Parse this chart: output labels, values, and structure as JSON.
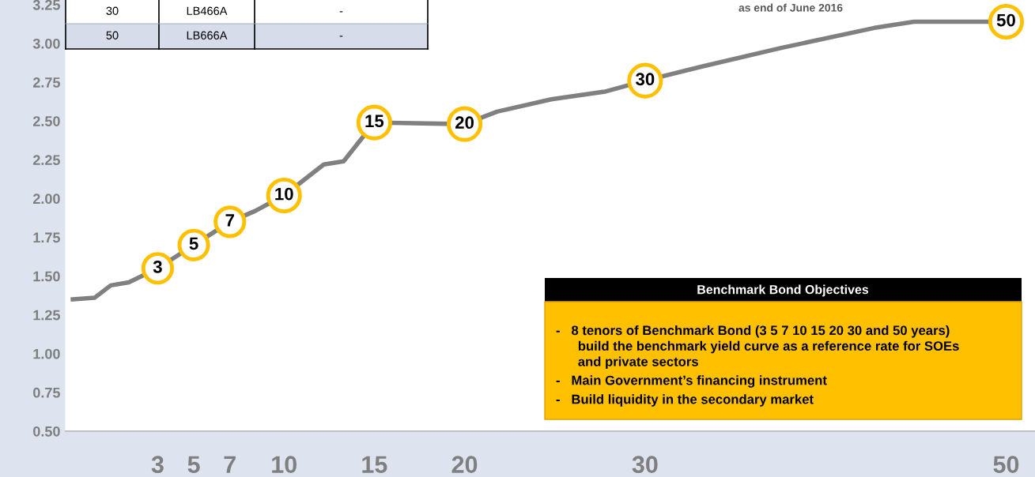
{
  "chart_data": {
    "type": "line",
    "x": [
      -1.7,
      -0.5,
      0.4,
      1.4,
      3,
      5,
      7,
      8.4,
      10,
      12.2,
      13.3,
      15,
      20,
      21.8,
      24.8,
      27.8,
      30,
      33.1,
      37.5,
      42.7,
      44.9,
      46.7,
      50
    ],
    "series": [
      {
        "color": "#808080",
        "values": [
          1.35,
          1.36,
          1.44,
          1.46,
          1.55,
          1.7,
          1.85,
          1.92,
          2.02,
          2.22,
          2.24,
          2.49,
          2.48,
          2.56,
          2.64,
          2.69,
          2.76,
          2.85,
          2.97,
          3.1,
          3.14,
          3.14,
          3.14
        ]
      }
    ],
    "xlim": [
      -2.1,
      51.6
    ],
    "xticks": [
      3,
      5,
      7,
      10,
      15,
      20,
      30,
      50
    ],
    "ylim": [
      0.5,
      3.28
    ],
    "yticks": [
      {
        "value": 0.5,
        "label": "0.50"
      },
      {
        "value": 0.75,
        "label": "0.75"
      },
      {
        "value": 1.0,
        "label": "1.00"
      },
      {
        "value": 1.25,
        "label": "1.25"
      },
      {
        "value": 1.5,
        "label": "1.50"
      },
      {
        "value": 1.75,
        "label": "1.75"
      },
      {
        "value": 2.0,
        "label": "2.00"
      },
      {
        "value": 2.25,
        "label": "2.25"
      },
      {
        "value": 2.5,
        "label": "2.50"
      },
      {
        "value": 2.75,
        "label": "2.75"
      },
      {
        "value": 3.0,
        "label": "3.00"
      },
      {
        "value": 3.25,
        "label": "3.25"
      }
    ],
    "grid": false,
    "legend": false,
    "marker": "none",
    "line_style": "solid",
    "annotations": [
      "30",
      "LB466A",
      "-",
      "50",
      "LB666A",
      "-",
      "as end of June 2016",
      "Benchmark Bond Objectives",
      "-   8 tenors of Benchmark Bond (3 5 7 10 15 20 30 and 50 years)\n      build the benchmark yield curve as a reference rate for SOEs\n      and private sectors",
      "-   Main Government’s financing instrument",
      "-   Build liquidity in the secondary market",
      {
        "text": "3",
        "x": 3,
        "y": 1.55
      },
      {
        "text": "5",
        "x": 5,
        "y": 1.7
      },
      {
        "text": "7",
        "x": 7,
        "y": 1.85
      },
      {
        "text": "10",
        "x": 10,
        "y": 2.02
      },
      {
        "text": "15",
        "x": 15,
        "y": 2.49
      },
      {
        "text": "20",
        "x": 20,
        "y": 2.48
      },
      {
        "text": "30",
        "x": 30,
        "y": 2.76
      },
      {
        "text": "50",
        "x": 50,
        "y": 3.14
      }
    ]
  }
}
